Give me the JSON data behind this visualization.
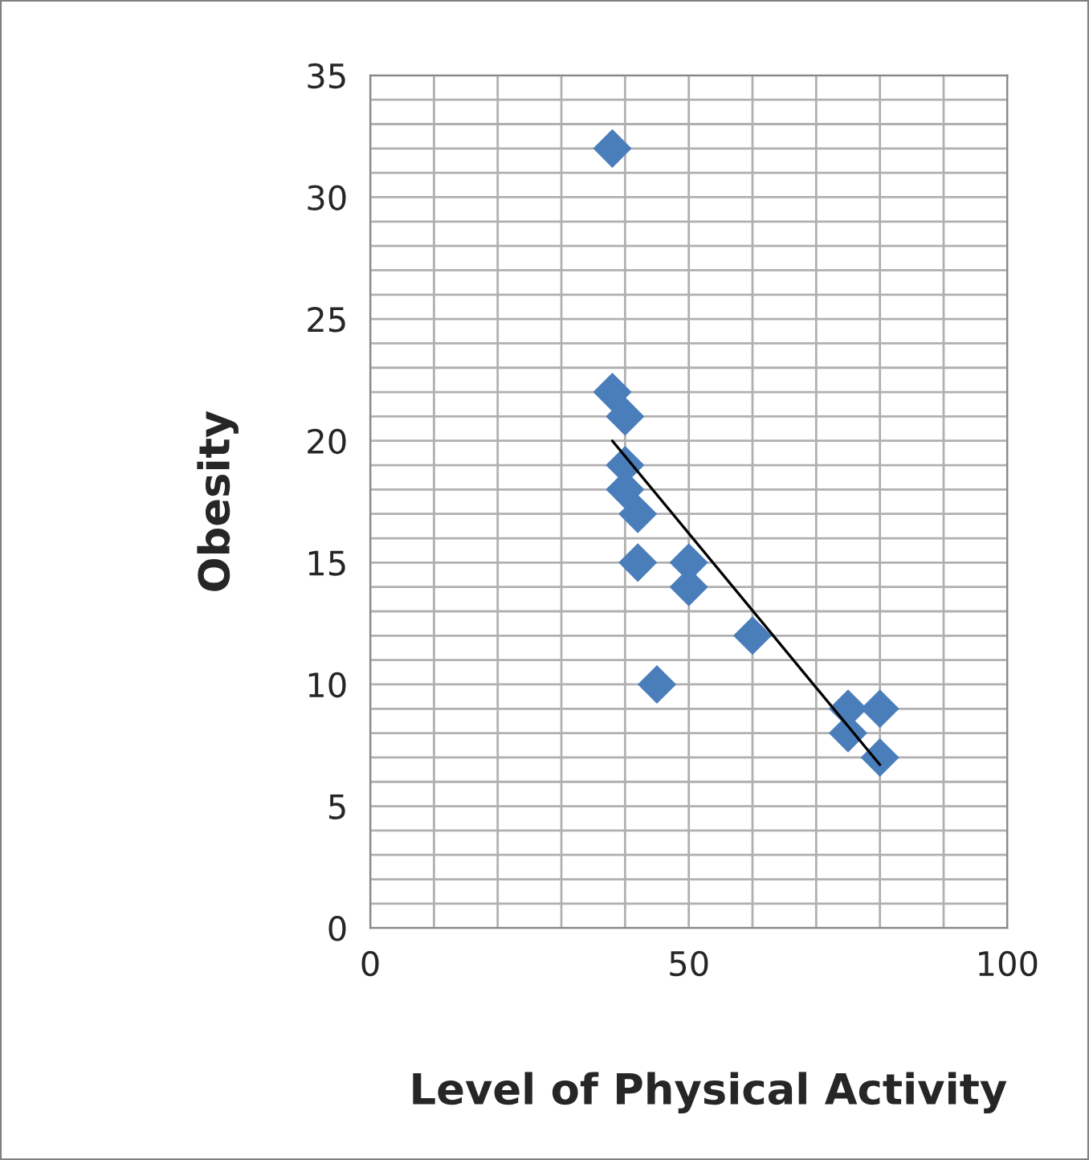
{
  "chart_data": {
    "type": "scatter",
    "xlabel": "Level of Physical Activity",
    "ylabel": "Obesity",
    "xlim": [
      0,
      100
    ],
    "ylim": [
      0,
      35
    ],
    "xticks": [
      0,
      {
        "value": 10,
        "label": null
      },
      {
        "value": 20,
        "label": null
      },
      {
        "value": 30,
        "label": null
      },
      {
        "value": 40,
        "label": null
      },
      50,
      {
        "value": 60,
        "label": null
      },
      {
        "value": 70,
        "label": null
      },
      {
        "value": 80,
        "label": null
      },
      {
        "value": 90,
        "label": null
      },
      100
    ],
    "yticks": [
      0,
      {
        "value": 1,
        "label": null
      },
      {
        "value": 2,
        "label": null
      },
      {
        "value": 3,
        "label": null
      },
      {
        "value": 4,
        "label": null
      },
      5,
      {
        "value": 6,
        "label": null
      },
      {
        "value": 7,
        "label": null
      },
      {
        "value": 8,
        "label": null
      },
      {
        "value": 9,
        "label": null
      },
      10,
      {
        "value": 11,
        "label": null
      },
      {
        "value": 12,
        "label": null
      },
      {
        "value": 13,
        "label": null
      },
      {
        "value": 14,
        "label": null
      },
      15,
      {
        "value": 16,
        "label": null
      },
      {
        "value": 17,
        "label": null
      },
      {
        "value": 18,
        "label": null
      },
      {
        "value": 19,
        "label": null
      },
      20,
      {
        "value": 21,
        "label": null
      },
      {
        "value": 22,
        "label": null
      },
      {
        "value": 23,
        "label": null
      },
      {
        "value": 24,
        "label": null
      },
      25,
      {
        "value": 26,
        "label": null
      },
      {
        "value": 27,
        "label": null
      },
      {
        "value": 28,
        "label": null
      },
      {
        "value": 29,
        "label": null
      },
      30,
      {
        "value": 31,
        "label": null
      },
      {
        "value": 32,
        "label": null
      },
      {
        "value": 33,
        "label": null
      },
      {
        "value": 34,
        "label": null
      },
      35
    ],
    "grid": true,
    "marker": "diamond",
    "series": [
      {
        "color": "#4a7ebb",
        "x": [
          38,
          38,
          40,
          40,
          40,
          42,
          42,
          50,
          50,
          60,
          45,
          75,
          80,
          75,
          80
        ],
        "values": [
          32,
          22,
          21,
          19,
          18,
          17,
          15,
          15,
          14,
          12,
          10,
          9,
          9,
          8,
          7
        ]
      },
      {
        "type": "line",
        "color": "#000000",
        "marker": "none",
        "x": [
          38,
          80
        ],
        "values": [
          20,
          6.7
        ]
      }
    ]
  }
}
